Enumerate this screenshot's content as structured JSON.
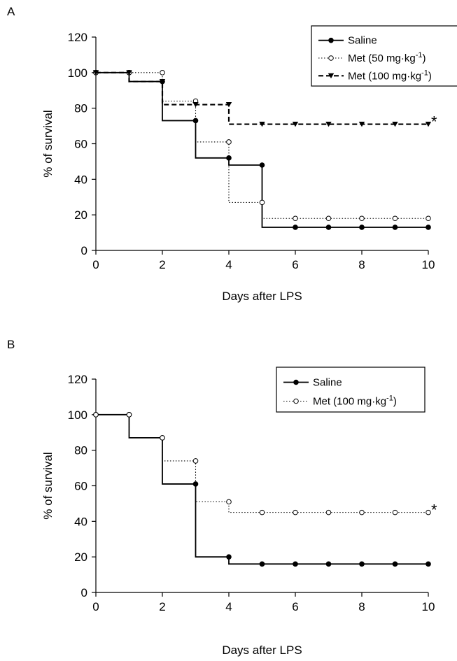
{
  "chart_data": [
    {
      "type": "line",
      "panel": "A",
      "step": true,
      "xlabel": "Days after LPS",
      "ylabel": "% of survival",
      "xlim": [
        0,
        10
      ],
      "ylim": [
        0,
        120
      ],
      "xticks": [
        "0",
        "2",
        "4",
        "6",
        "8",
        "10"
      ],
      "yticks": [
        "0",
        "20",
        "40",
        "60",
        "80",
        "100",
        "120"
      ],
      "legend_position": "top-right",
      "annotation": "*",
      "x": [
        0,
        1,
        2,
        3,
        4,
        5,
        6,
        7,
        8,
        9,
        10
      ],
      "series": [
        {
          "name": "Saline",
          "marker": "filled-circle",
          "line": "solid",
          "values": [
            100,
            95,
            73,
            52,
            48,
            13,
            13,
            13,
            13,
            13,
            13
          ]
        },
        {
          "name": "Met (50 mg·kg",
          "name_sup": "-1",
          "name_end": ")",
          "marker": "open-circle",
          "line": "dotted",
          "values": [
            100,
            100,
            84,
            61,
            27,
            18,
            18,
            18,
            18,
            18,
            18
          ]
        },
        {
          "name": "Met (100 mg·kg",
          "name_sup": "-1",
          "name_end": ")",
          "marker": "filled-triangle-down",
          "line": "dashed",
          "values": [
            100,
            95,
            82,
            82,
            71,
            71,
            71,
            71,
            71,
            71,
            71
          ]
        }
      ]
    },
    {
      "type": "line",
      "panel": "B",
      "step": true,
      "xlabel": "Days after LPS",
      "ylabel": "% of survival",
      "xlim": [
        0,
        10
      ],
      "ylim": [
        0,
        120
      ],
      "xticks": [
        "0",
        "2",
        "4",
        "6",
        "8",
        "10"
      ],
      "yticks": [
        "0",
        "20",
        "40",
        "60",
        "80",
        "100",
        "120"
      ],
      "legend_position": "top-right",
      "annotation": "*",
      "x": [
        0,
        1,
        2,
        3,
        4,
        5,
        6,
        7,
        8,
        9,
        10
      ],
      "series": [
        {
          "name": "Saline",
          "marker": "filled-circle",
          "line": "solid",
          "values": [
            100,
            87,
            61,
            20,
            16,
            16,
            16,
            16,
            16,
            16,
            16
          ]
        },
        {
          "name": "Met (100 mg·kg",
          "name_sup": "-1",
          "name_end": ")",
          "marker": "open-circle",
          "line": "dotted",
          "values": [
            100,
            87,
            74,
            51,
            45,
            45,
            45,
            45,
            45,
            45,
            45
          ]
        }
      ]
    }
  ]
}
